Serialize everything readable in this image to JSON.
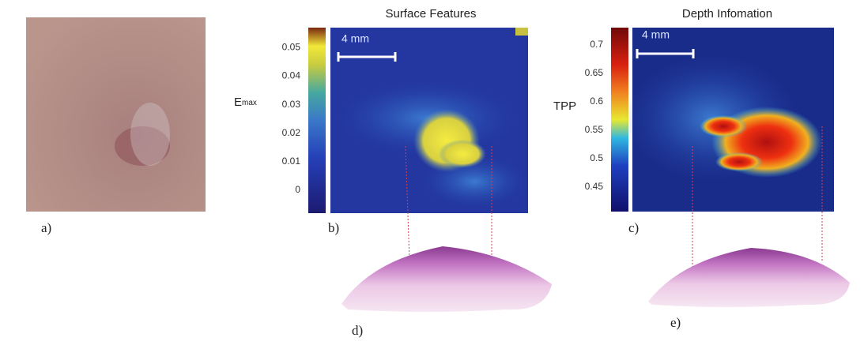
{
  "panels": {
    "a": {
      "label": "a)"
    },
    "b": {
      "label": "b)",
      "title": "Surface Features",
      "scale_bar": "4 mm",
      "colorbar": {
        "label": {
          "main": "E",
          "sub": "max"
        },
        "lim": [
          -0.008,
          0.057
        ],
        "ticks": [
          0,
          0.01,
          0.02,
          0.03,
          0.04,
          0.05
        ]
      }
    },
    "c": {
      "label": "c)",
      "title": "Depth Infomation",
      "scale_bar": "4 mm",
      "colorbar": {
        "label": "TPP",
        "lim": [
          0.407,
          0.73
        ],
        "ticks": [
          0.45,
          0.5,
          0.55,
          0.6,
          0.65,
          0.7
        ]
      }
    },
    "d": {
      "label": "d)"
    },
    "e": {
      "label": "e)"
    }
  }
}
